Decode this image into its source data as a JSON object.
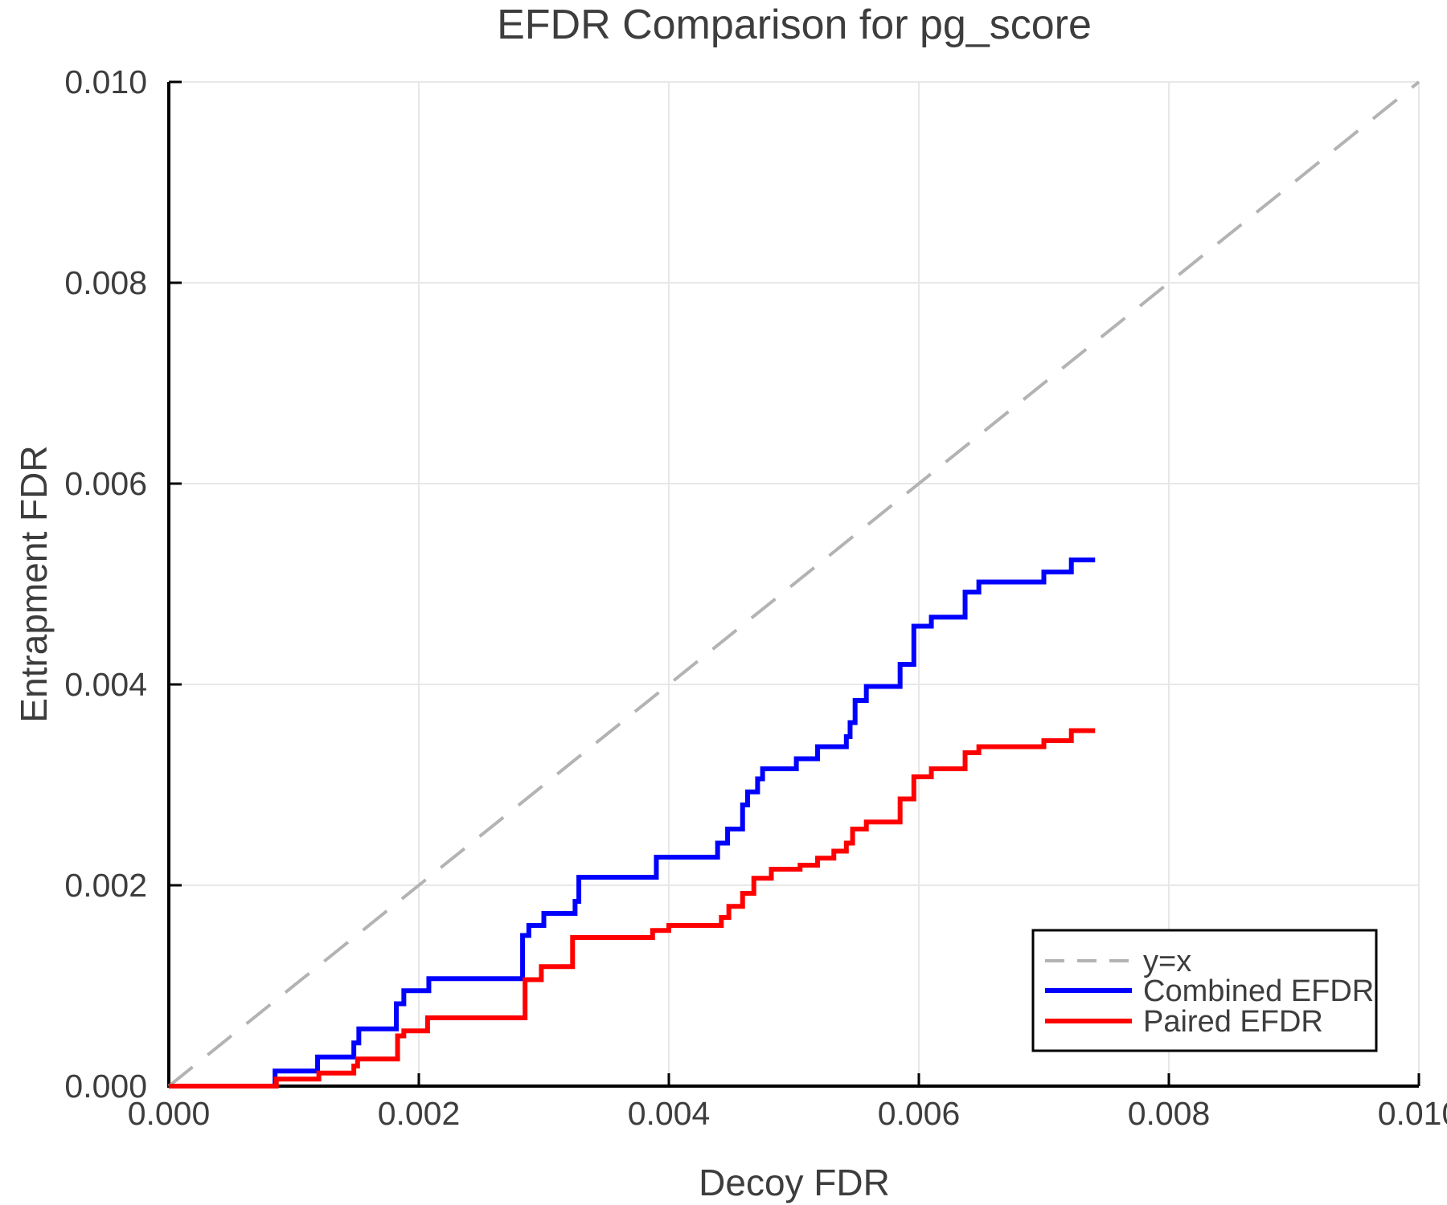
{
  "chart_data": {
    "type": "line",
    "title": "EFDR Comparison for pg_score",
    "xlabel": "Decoy FDR",
    "ylabel": "Entrapment FDR",
    "xlim": [
      0,
      0.01
    ],
    "ylim": [
      0,
      0.01
    ],
    "grid": true,
    "legend_position": "bottom-right",
    "xticks": [
      0,
      0.002,
      0.004,
      0.006,
      0.008,
      0.01
    ],
    "xtick_labels": [
      "0.000",
      "0.002",
      "0.004",
      "0.006",
      "0.008",
      "0.010"
    ],
    "yticks": [
      0,
      0.002,
      0.004,
      0.006,
      0.008,
      0.01
    ],
    "ytick_labels": [
      "0.000",
      "0.002",
      "0.004",
      "0.006",
      "0.008",
      "0.010"
    ],
    "colors": {
      "grid": "#e8e8e8",
      "axis": "#000000",
      "text": "#3d3d3d",
      "identity_line": "#b3b3b3",
      "combined": "#0000ff",
      "paired": "#ff0000"
    },
    "series": [
      {
        "name": "y=x",
        "color": "#b3b3b3",
        "width": 4,
        "dashed": true,
        "step": false,
        "points": [
          [
            0,
            0
          ],
          [
            0.01,
            0.01
          ]
        ]
      },
      {
        "name": "Combined EFDR",
        "color": "#0000ff",
        "width": 6,
        "dashed": false,
        "step": true,
        "points": [
          [
            0,
            0
          ],
          [
            0.00085,
            0.00015
          ],
          [
            0.00119,
            0.00029
          ],
          [
            0.00148,
            0.00043
          ],
          [
            0.00152,
            0.00057
          ],
          [
            0.00182,
            0.00082
          ],
          [
            0.00188,
            0.00095
          ],
          [
            0.00208,
            0.00107
          ],
          [
            0.00283,
            0.0015
          ],
          [
            0.00288,
            0.0016
          ],
          [
            0.003,
            0.00172
          ],
          [
            0.00325,
            0.00184
          ],
          [
            0.00328,
            0.00208
          ],
          [
            0.0039,
            0.00228
          ],
          [
            0.00439,
            0.00242
          ],
          [
            0.00447,
            0.00256
          ],
          [
            0.00459,
            0.0028
          ],
          [
            0.00463,
            0.00293
          ],
          [
            0.00471,
            0.00306
          ],
          [
            0.00475,
            0.00316
          ],
          [
            0.00502,
            0.00326
          ],
          [
            0.00519,
            0.00338
          ],
          [
            0.00542,
            0.00348
          ],
          [
            0.00545,
            0.00362
          ],
          [
            0.00549,
            0.00384
          ],
          [
            0.00558,
            0.00398
          ],
          [
            0.00585,
            0.0042
          ],
          [
            0.00596,
            0.00458
          ],
          [
            0.0061,
            0.00467
          ],
          [
            0.00637,
            0.00492
          ],
          [
            0.00648,
            0.00502
          ],
          [
            0.007,
            0.00512
          ],
          [
            0.00722,
            0.00524
          ],
          [
            0.00741,
            0.00524
          ]
        ]
      },
      {
        "name": "Paired EFDR",
        "color": "#ff0000",
        "width": 6,
        "dashed": false,
        "step": true,
        "points": [
          [
            0,
            0
          ],
          [
            0.00086,
            7e-05
          ],
          [
            0.0012,
            0.00013
          ],
          [
            0.00148,
            0.0002
          ],
          [
            0.00151,
            0.00027
          ],
          [
            0.00183,
            0.0005
          ],
          [
            0.00188,
            0.00055
          ],
          [
            0.00207,
            0.00068
          ],
          [
            0.00285,
            0.00106
          ],
          [
            0.00298,
            0.00119
          ],
          [
            0.00323,
            0.00148
          ],
          [
            0.00387,
            0.00155
          ],
          [
            0.004,
            0.0016
          ],
          [
            0.00442,
            0.00168
          ],
          [
            0.00448,
            0.00179
          ],
          [
            0.00459,
            0.00192
          ],
          [
            0.00468,
            0.00207
          ],
          [
            0.00482,
            0.00216
          ],
          [
            0.00505,
            0.0022
          ],
          [
            0.00519,
            0.00227
          ],
          [
            0.00532,
            0.00234
          ],
          [
            0.00542,
            0.00242
          ],
          [
            0.00547,
            0.00256
          ],
          [
            0.00558,
            0.00263
          ],
          [
            0.00585,
            0.00286
          ],
          [
            0.00596,
            0.00308
          ],
          [
            0.0061,
            0.00316
          ],
          [
            0.00637,
            0.00332
          ],
          [
            0.00648,
            0.00338
          ],
          [
            0.007,
            0.00344
          ],
          [
            0.00722,
            0.00354
          ],
          [
            0.00741,
            0.00354
          ]
        ]
      }
    ],
    "legend": {
      "items": [
        {
          "label": "y=x"
        },
        {
          "label": "Combined EFDR"
        },
        {
          "label": "Paired EFDR"
        }
      ]
    }
  }
}
